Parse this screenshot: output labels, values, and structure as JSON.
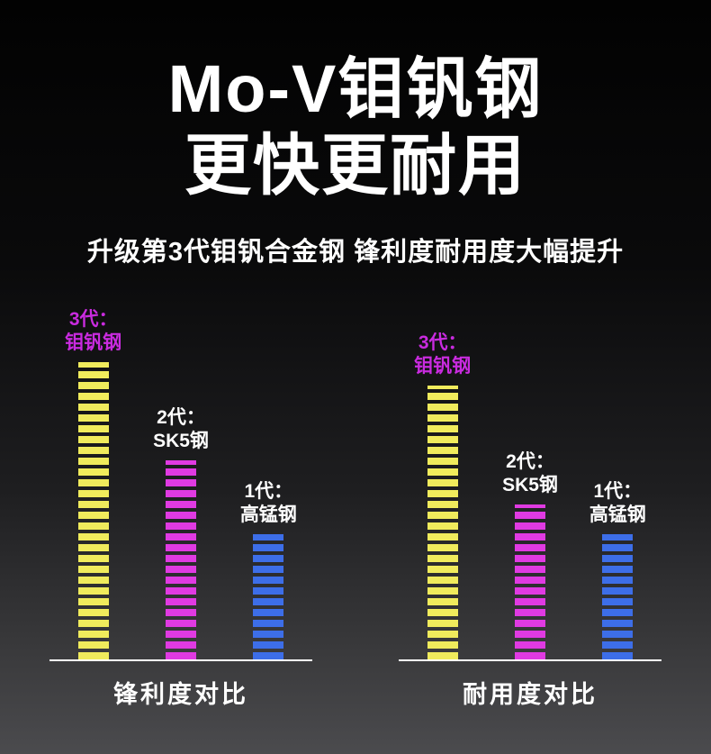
{
  "header": {
    "title_line1": "Mo-V钼钒钢",
    "title_line2": "更快更耐用",
    "subtitle": "升级第3代钼钒合金钢 锋利度耐用度大幅提升"
  },
  "colors": {
    "background_top": "#020202",
    "background_bottom": "#4b4b4e",
    "title_text": "#ffffff",
    "gen3_bar": "#f0eb5c",
    "gen2_bar": "#e03ae2",
    "gen1_bar": "#3d6ee8",
    "gen3_label": "#c92bdf",
    "baseline": "#ffffff"
  },
  "chart_data": [
    {
      "type": "bar",
      "title": "锋利度对比",
      "categories": [
        "3代：钼钒钢",
        "2代：SK5钢",
        "1代：高锰钢"
      ],
      "category_lines": [
        [
          "3代：",
          "钼钒钢"
        ],
        [
          "2代：",
          "SK5钢"
        ],
        [
          "1代：",
          "高锰钢"
        ]
      ],
      "values": [
        100,
        67,
        42
      ],
      "ylim": [
        0,
        100
      ],
      "bar_colors": [
        "#f0eb5c",
        "#e03ae2",
        "#3d6ee8"
      ],
      "label_colors": [
        "#c92bdf",
        "#ffffff",
        "#ffffff"
      ],
      "xlabel": "",
      "ylabel": "",
      "legend": "none",
      "grid": false,
      "bar_style": "horizontal-striped-segments"
    },
    {
      "type": "bar",
      "title": "耐用度对比",
      "categories": [
        "3代：钼钒钢",
        "2代：SK5钢",
        "1代：高锰钢"
      ],
      "category_lines": [
        [
          "3代：",
          "钼钒钢"
        ],
        [
          "2代：",
          "SK5钢"
        ],
        [
          "1代：",
          "高锰钢"
        ]
      ],
      "values": [
        92,
        52,
        42
      ],
      "ylim": [
        0,
        100
      ],
      "bar_colors": [
        "#f0eb5c",
        "#e03ae2",
        "#3d6ee8"
      ],
      "label_colors": [
        "#c92bdf",
        "#ffffff",
        "#ffffff"
      ],
      "xlabel": "",
      "ylabel": "",
      "legend": "none",
      "grid": false,
      "bar_style": "horizontal-striped-segments"
    }
  ]
}
